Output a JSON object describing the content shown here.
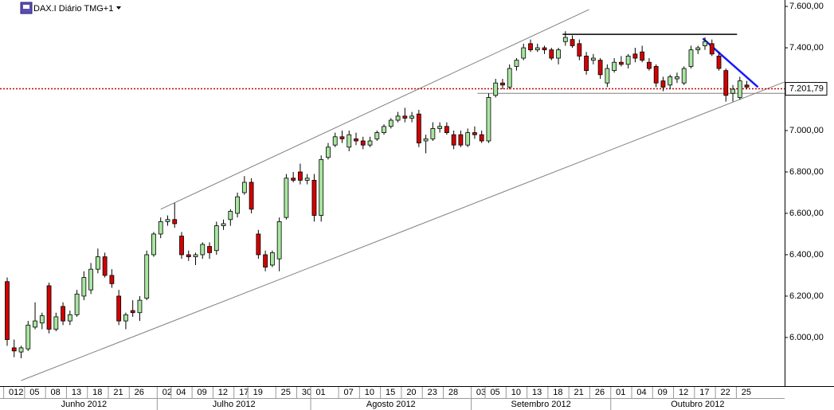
{
  "chart_data": {
    "type": "candlestick",
    "title": "DAX.I Diário TMG+1",
    "categories": [
      "012",
      null,
      null,
      "05",
      null,
      null,
      "08",
      null,
      null,
      "13",
      null,
      null,
      "18",
      null,
      null,
      "21",
      null,
      null,
      "26",
      null,
      null,
      null,
      "02",
      null,
      "04",
      null,
      null,
      "09",
      null,
      null,
      "12",
      null,
      null,
      "17",
      null,
      "19",
      null,
      null,
      null,
      "25",
      null,
      null,
      "30",
      null,
      "01",
      null,
      null,
      null,
      "07",
      null,
      null,
      "10",
      null,
      null,
      "15",
      null,
      null,
      "20",
      null,
      null,
      "23",
      null,
      null,
      "28",
      null,
      null,
      null,
      "03",
      null,
      "05",
      null,
      null,
      "10",
      null,
      null,
      "13",
      null,
      null,
      "18",
      null,
      null,
      "21",
      null,
      null,
      "26",
      null,
      null,
      "01",
      null,
      null,
      "04",
      null,
      null,
      "09",
      null,
      null,
      "12",
      null,
      null,
      "17",
      null,
      null,
      "22",
      null,
      null,
      "25",
      null
    ],
    "months": [
      "Junho 2012",
      "Julho 2012",
      "Agosto 2012",
      "Setembro 2012",
      "Outubro 2012"
    ],
    "open": [
      6270,
      5950,
      5930,
      5945,
      6050,
      6070,
      6250,
      6040,
      6150,
      6080,
      6110,
      6200,
      6230,
      6330,
      6390,
      6300,
      6200,
      6080,
      6130,
      6120,
      6190,
      6400,
      6500,
      6560,
      6570,
      6490,
      6400,
      6390,
      6400,
      6440,
      6420,
      6540,
      6570,
      6600,
      6700,
      6750,
      6500,
      6400,
      6350,
      6380,
      6580,
      6770,
      6800,
      6760,
      6760,
      6590,
      6870,
      6930,
      6970,
      6920,
      6960,
      6950,
      6930,
      6960,
      6990,
      7020,
      7050,
      7070,
      7060,
      7080,
      6950,
      6960,
      7010,
      7020,
      6980,
      6980,
      6930,
      6990,
      6980,
      6950,
      7170,
      7230,
      7210,
      7310,
      7350,
      7420,
      7390,
      7400,
      7390,
      7350,
      7430,
      7440,
      7420,
      7360,
      7340,
      7340,
      7230,
      7290,
      7330,
      7320,
      7370,
      7380,
      7330,
      7310,
      7240,
      7220,
      7250,
      7230,
      7310,
      7390,
      7410,
      7420,
      7360,
      7290,
      7180,
      7160,
      7220
    ],
    "high": [
      6290,
      5990,
      5960,
      6080,
      6170,
      6120,
      6265,
      6120,
      6170,
      6130,
      6230,
      6320,
      6360,
      6430,
      6410,
      6330,
      6230,
      6120,
      6180,
      6200,
      6420,
      6510,
      6580,
      6590,
      6650,
      6510,
      6420,
      6410,
      6460,
      6460,
      6560,
      6570,
      6620,
      6700,
      6780,
      6770,
      6520,
      6420,
      6420,
      6580,
      6790,
      6800,
      6840,
      6790,
      6790,
      6880,
      6940,
      6990,
      7000,
      7000,
      6990,
      6970,
      6970,
      7000,
      7030,
      7060,
      7090,
      7110,
      7090,
      7100,
      6980,
      7040,
      7040,
      7040,
      7000,
      7000,
      7010,
      7020,
      7000,
      7180,
      7250,
      7250,
      7320,
      7350,
      7420,
      7440,
      7420,
      7410,
      7400,
      7400,
      7480,
      7460,
      7440,
      7380,
      7370,
      7350,
      7320,
      7350,
      7360,
      7370,
      7400,
      7410,
      7350,
      7320,
      7260,
      7270,
      7280,
      7310,
      7410,
      7410,
      7450,
      7440,
      7380,
      7300,
      7220,
      7260,
      7240
    ],
    "low": [
      5960,
      5905,
      5900,
      5935,
      6040,
      6040,
      6020,
      6030,
      6060,
      6060,
      6100,
      6180,
      6210,
      6310,
      6290,
      6240,
      6060,
      6040,
      6100,
      6080,
      6180,
      6390,
      6480,
      6540,
      6530,
      6380,
      6370,
      6350,
      6380,
      6380,
      6400,
      6520,
      6540,
      6580,
      6690,
      6600,
      6380,
      6320,
      6340,
      6320,
      6570,
      6750,
      6740,
      6740,
      6560,
      6560,
      6860,
      6920,
      6940,
      6900,
      6930,
      6910,
      6920,
      6950,
      6980,
      7010,
      7040,
      7040,
      7040,
      6920,
      6890,
      6950,
      6990,
      6980,
      6910,
      6920,
      6920,
      6960,
      6940,
      6940,
      7160,
      7200,
      7200,
      7290,
      7340,
      7380,
      7380,
      7370,
      7340,
      7320,
      7410,
      7400,
      7340,
      7270,
      7320,
      7250,
      7210,
      7280,
      7310,
      7300,
      7330,
      7330,
      7290,
      7210,
      7190,
      7200,
      7230,
      7220,
      7300,
      7370,
      7390,
      7360,
      7290,
      7140,
      7140,
      7150,
      7200
    ],
    "close": [
      5990,
      5935,
      5950,
      6060,
      6080,
      6105,
      6040,
      6100,
      6080,
      6110,
      6210,
      6290,
      6330,
      6390,
      6300,
      6260,
      6080,
      6110,
      6120,
      6180,
      6400,
      6500,
      6560,
      6570,
      6550,
      6400,
      6390,
      6400,
      6450,
      6410,
      6540,
      6550,
      6610,
      6680,
      6750,
      6620,
      6400,
      6340,
      6410,
      6560,
      6770,
      6760,
      6760,
      6770,
      6590,
      6860,
      6920,
      6970,
      6960,
      6980,
      6950,
      6930,
      6950,
      6990,
      7020,
      7050,
      7070,
      7060,
      7070,
      6940,
      6960,
      7010,
      7020,
      6990,
      6930,
      6930,
      6990,
      6980,
      6950,
      7160,
      7230,
      7220,
      7300,
      7340,
      7400,
      7390,
      7400,
      7390,
      7350,
      7390,
      7450,
      7410,
      7360,
      7290,
      7350,
      7270,
      7300,
      7330,
      7320,
      7360,
      7350,
      7340,
      7300,
      7230,
      7210,
      7260,
      7260,
      7300,
      7390,
      7400,
      7430,
      7370,
      7300,
      7170,
      7200,
      7240,
      7210
    ],
    "up_color": "#a8e6a0",
    "down_color": "#d40000",
    "ylim": [
      5765,
      7631
    ],
    "yticks": [
      {
        "value": 6000,
        "label": "6.000,00"
      },
      {
        "value": 6200,
        "label": "6.200,00"
      },
      {
        "value": 6400,
        "label": "6.400,00"
      },
      {
        "value": 6600,
        "label": "6.600,00"
      },
      {
        "value": 6800,
        "label": "6.800,00"
      },
      {
        "value": 7000,
        "label": "7.000,00"
      },
      {
        "value": 7200,
        "label": "7.200,00"
      },
      {
        "value": 7400,
        "label": "7.400,00"
      },
      {
        "value": 7600,
        "label": "7.600,00"
      }
    ],
    "last_price": {
      "value": 7201.79,
      "label": "7.201,79"
    },
    "last_price_color": "#cc0000",
    "lines": [
      {
        "x": [
          22,
          83.4
        ],
        "y": [
          6620,
          7585
        ],
        "color": "#808080"
      },
      {
        "x": [
          2,
          111.4
        ],
        "y": [
          5792,
          7235
        ],
        "color": "#808080"
      },
      {
        "x": [
          79.6,
          104.6
        ],
        "y": [
          7465,
          7465
        ],
        "color": "#000000"
      },
      {
        "x": [
          67.4,
          111.4
        ],
        "y": [
          7180,
          7180
        ],
        "color": "#808080"
      },
      {
        "x": [
          99.7,
          107.6
        ],
        "y": [
          7445,
          7210
        ],
        "color": "#1a1aff"
      }
    ]
  }
}
